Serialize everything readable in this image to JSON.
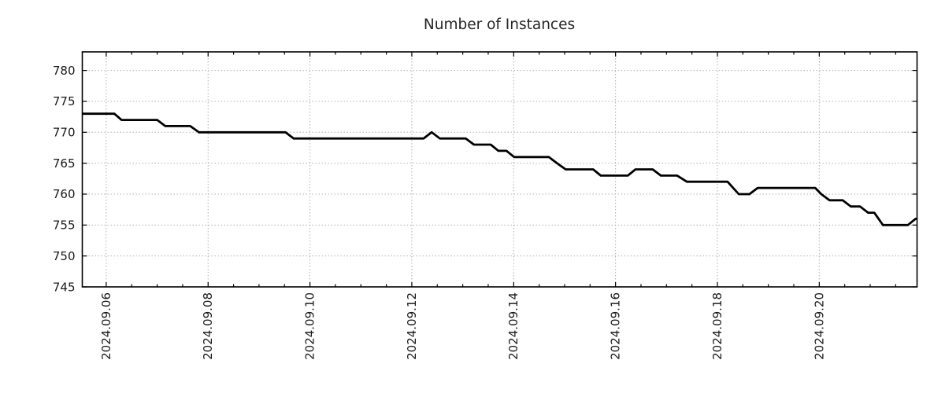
{
  "chart_data": {
    "type": "line",
    "title": "Number of Instances",
    "x_axis": {
      "tick_labels": [
        "2024.09.06",
        "2024.09.08",
        "2024.09.10",
        "2024.09.12",
        "2024.09.14",
        "2024.09.16",
        "2024.09.18",
        "2024.09.20"
      ],
      "major_tick_days": [
        0,
        2,
        4,
        6,
        8,
        10,
        12,
        14
      ],
      "minor_tick_step_days": 0.5,
      "xlim_days": [
        -0.47,
        15.92
      ],
      "label_rotation_deg": 90
    },
    "y_axis": {
      "ticks": [
        745,
        750,
        755,
        760,
        765,
        770,
        775,
        780
      ],
      "ylim": [
        745,
        783
      ]
    },
    "grid": {
      "style": "dotted",
      "color": "#b0b0b0"
    },
    "legend": "none",
    "series": [
      {
        "name": "instances",
        "color": "#000000",
        "points_day_value": [
          [
            -0.47,
            773
          ],
          [
            0.16,
            773
          ],
          [
            0.3,
            772
          ],
          [
            1.0,
            772
          ],
          [
            1.16,
            771
          ],
          [
            1.65,
            771
          ],
          [
            1.82,
            770
          ],
          [
            3.52,
            770
          ],
          [
            3.68,
            769
          ],
          [
            6.23,
            769
          ],
          [
            6.39,
            770
          ],
          [
            6.55,
            769
          ],
          [
            7.06,
            769
          ],
          [
            7.22,
            768
          ],
          [
            7.55,
            768
          ],
          [
            7.7,
            767
          ],
          [
            7.86,
            767
          ],
          [
            8.01,
            766
          ],
          [
            8.69,
            766
          ],
          [
            8.85,
            765
          ],
          [
            9.02,
            764
          ],
          [
            9.56,
            764
          ],
          [
            9.71,
            763
          ],
          [
            10.24,
            763
          ],
          [
            10.39,
            764
          ],
          [
            10.73,
            764
          ],
          [
            10.89,
            763
          ],
          [
            11.21,
            763
          ],
          [
            11.4,
            762
          ],
          [
            12.2,
            762
          ],
          [
            12.42,
            760
          ],
          [
            12.63,
            760
          ],
          [
            12.79,
            761
          ],
          [
            13.92,
            761
          ],
          [
            14.04,
            760
          ],
          [
            14.2,
            759
          ],
          [
            14.46,
            759
          ],
          [
            14.62,
            758
          ],
          [
            14.8,
            758
          ],
          [
            14.96,
            757
          ],
          [
            15.08,
            757
          ],
          [
            15.25,
            755
          ],
          [
            15.74,
            755
          ],
          [
            15.89,
            756
          ],
          [
            15.92,
            756
          ]
        ]
      }
    ],
    "colors": {
      "line": "#000000",
      "axis": "#000000",
      "grid": "#b0b0b0",
      "text": "#1a1a1a",
      "background": "#ffffff"
    }
  }
}
